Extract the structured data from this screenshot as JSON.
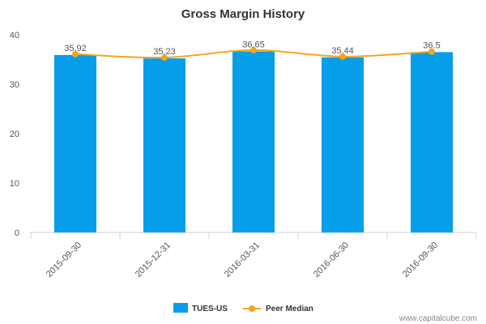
{
  "chart_data": {
    "type": "bar",
    "title": "Gross Margin History",
    "xlabel": "",
    "ylabel": "",
    "categories": [
      "2015-09-30",
      "2015-12-31",
      "2016-03-31",
      "2016-06-30",
      "2016-09-30"
    ],
    "series": [
      {
        "name": "TUES-US",
        "kind": "bar",
        "color": "#069ee8",
        "values": [
          35.92,
          35.23,
          36.65,
          35.44,
          36.5
        ]
      },
      {
        "name": "Peer Median",
        "kind": "line",
        "color": "#f5a51c",
        "values": [
          36.1,
          35.4,
          36.9,
          35.6,
          36.6
        ]
      }
    ],
    "data_labels": [
      "35.92",
      "35.23",
      "36.65",
      "35.44",
      "36.5"
    ],
    "ylim": [
      0,
      40
    ],
    "yticks": [
      0,
      10,
      20,
      30,
      40
    ],
    "grid": false,
    "legend_position": "bottom"
  },
  "watermark": "www.capitalcube.com"
}
